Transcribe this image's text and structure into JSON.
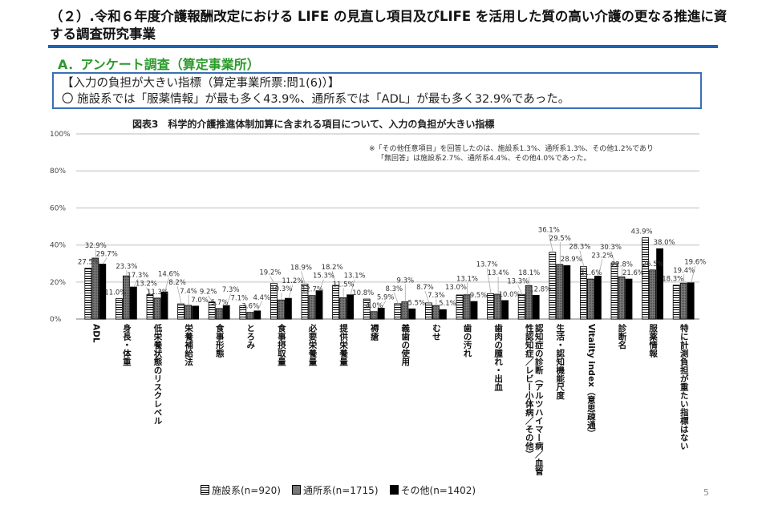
{
  "header": {
    "title": "（２）.令和６年度介護報酬改定における LIFE の見直し項目及びLIFE を活用した質の高い介護の更なる推進に資する調査研究事業",
    "section": "A．アンケート調査（算定事業所）"
  },
  "summary": {
    "heading": "【入力の負担が大きい指標（算定事業所票:問1(6)）】",
    "bullet": "〇 施設系では「服薬情報」が最も多く43.9%、通所系では「ADL」が最も多く32.9%であった。"
  },
  "note": {
    "line1": "※「その他任意項目」を回答したのは、施設系1.3%、通所系1.3%、その他1.2%であり",
    "line2": "「無回答」は施設系2.7%、通所系4.4%、その他4.0%であった。"
  },
  "page_number": "5",
  "chart_data": {
    "type": "bar",
    "title": "図表3　科学的介護推進体制加算に含まれる項目について、入力の負担が大きい指標",
    "ylim": [
      0,
      100
    ],
    "yticks": [
      "0%",
      "20%",
      "40%",
      "60%",
      "80%",
      "100%"
    ],
    "grid": true,
    "legend_position": "bottom",
    "categories": [
      "ADL",
      "身長・体重",
      "低栄養状態のリスクレベル",
      "栄養補給法",
      "食事形態",
      "とろみ",
      "食事摂取量",
      "必要栄養量",
      "提供栄養量",
      "褥瘡",
      "義歯の使用",
      "むせ",
      "歯の汚れ",
      "歯肉の腫れ・出血",
      "認知症の診断（アルツハイマー病／血管性認知症／レビー小体病／その他）",
      "生活・認知機能尺度",
      "Vitality index（意思疎通）",
      "診断名",
      "服薬情報",
      "特に計測負担が重たい指標はない"
    ],
    "series": [
      {
        "name": "施設系(n=920)",
        "values": [
          27.5,
          11.0,
          13.2,
          8.2,
          9.2,
          7.1,
          19.2,
          18.9,
          18.2,
          10.8,
          8.3,
          8.7,
          13.0,
          13.7,
          13.3,
          36.1,
          28.3,
          30.3,
          43.9,
          18.3
        ]
      },
      {
        "name": "通所系(n=1715)",
        "values": [
          32.9,
          23.3,
          11.3,
          7.4,
          5.7,
          3.6,
          10.3,
          12.7,
          11.5,
          4.0,
          9.3,
          7.3,
          13.1,
          13.4,
          18.1,
          29.5,
          21.6,
          22.8,
          26.5,
          19.4
        ]
      },
      {
        "name": "その他(n=1402)",
        "values": [
          29.7,
          17.3,
          14.6,
          7.0,
          7.3,
          4.4,
          11.2,
          15.3,
          13.1,
          5.9,
          5.5,
          5.1,
          9.5,
          10.0,
          12.8,
          28.9,
          23.2,
          21.6,
          38.0,
          19.6
        ]
      }
    ]
  }
}
